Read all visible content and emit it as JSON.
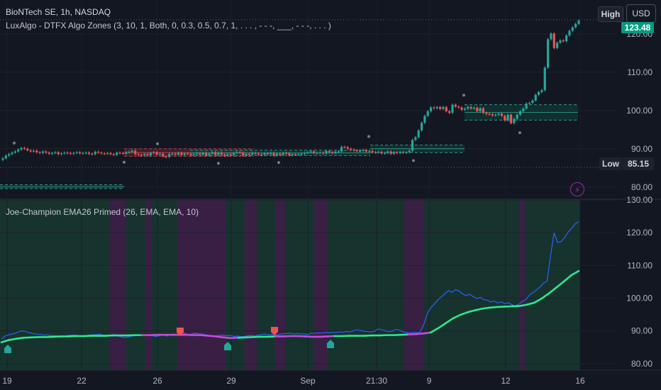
{
  "header": {
    "title": "BioNTech SE, 1h, NASDAQ",
    "indicator1": "LuxAlgo - DTFX Algo Zones (3, 10, 1, Both, 0, 0.3, 0.5, 0.7, 1, . . . , - - -, ___, - - -, . . . )",
    "indicator2": "Joe-Champion EMA26 Primed (26, EMA, EMA, 10)"
  },
  "controls": {
    "high_label": "High",
    "currency": "USD",
    "low_label": "Low",
    "low_value": "85.15",
    "last_price": "123.48",
    "alert_icon": "lightning-icon"
  },
  "colors": {
    "background": "#131722",
    "up": "#26a69a",
    "down": "#ef5350",
    "price_line": "#2962ff",
    "ema_bull": "#2ee88c",
    "ema_bear": "#c04dd6",
    "zone_bull": "#0f3b35",
    "zone_bear": "#5a1f2a",
    "bg_bull": "#17332e",
    "bg_bear": "#3a1f45"
  },
  "chart_data": [
    {
      "type": "candlestick",
      "title": "BioNTech SE, 1h, NASDAQ",
      "y_ticks": [
        80,
        90,
        100,
        110,
        120
      ],
      "ylim": [
        77,
        127
      ],
      "high": 123.48,
      "low": 85.15,
      "close": [
        87.5,
        88.2,
        88.6,
        89.0,
        89.3,
        89.8,
        90.2,
        90.0,
        89.6,
        89.3,
        89.5,
        89.1,
        88.9,
        89.3,
        89.0,
        88.7,
        88.9,
        89.1,
        88.6,
        88.8,
        89.0,
        88.9,
        88.7,
        88.9,
        89.1,
        88.8,
        88.9,
        89.0,
        88.7,
        88.6,
        89.2,
        89.0,
        88.8,
        88.7,
        88.9,
        88.6,
        88.4,
        89.0,
        88.9,
        88.7,
        89.1,
        89.2,
        89.5,
        88.6,
        88.4,
        88.3,
        88.6,
        88.3,
        88.9,
        89.1,
        88.5,
        88.7,
        88.0,
        87.9,
        88.6,
        88.7,
        88.5,
        88.9,
        88.4,
        88.8,
        88.7,
        88.4,
        88.6,
        88.8,
        88.5,
        88.9,
        88.3,
        88.7,
        89.1,
        88.4,
        89.0,
        88.5,
        88.2,
        88.6,
        88.4,
        88.9,
        89.1,
        89.0,
        88.3,
        88.6,
        88.5,
        88.9,
        88.7,
        88.5,
        88.4,
        88.8,
        88.6,
        88.9,
        88.2,
        88.7,
        88.4,
        88.9,
        88.8,
        88.3,
        88.6,
        88.5,
        88.6,
        88.7,
        88.9,
        89.1,
        89.3,
        88.9,
        89.0,
        89.0,
        88.8,
        89.4,
        89.1,
        88.9,
        89.2,
        89.3,
        90.5,
        90.4,
        90.0,
        89.8,
        89.6,
        89.4,
        89.5,
        89.7,
        89.3,
        89.4,
        89.1,
        89.0,
        89.2,
        88.8,
        88.9,
        89.3,
        88.7,
        89.1,
        88.9,
        89.2,
        89.0,
        89.1,
        89.5,
        92.3,
        93.0,
        94.8,
        96.8,
        98.6,
        99.8,
        100.8,
        100.6,
        100.9,
        100.4,
        100.9,
        99.8,
        99.4,
        101.5,
        101.0,
        100.8,
        100.2,
        100.5,
        100.9,
        100.5,
        100.7,
        99.8,
        100.6,
        99.4,
        99.1,
        99.0,
        98.7,
        98.9,
        99.2,
        98.6,
        97.4,
        98.9,
        96.7,
        97.8,
        98.9,
        99.8,
        100.5,
        101.8,
        102.0,
        102.6,
        104.1,
        104.8,
        105.3,
        111.2,
        118.6,
        120.1,
        116.3,
        117.7,
        118.3,
        118.1,
        119.6,
        120.8,
        121.7,
        122.6,
        123.48
      ]
    },
    {
      "type": "line",
      "title": "Joe-Champion EMA26 Primed (26, EMA, EMA, 10)",
      "y_ticks": [
        80,
        90,
        100,
        110,
        120,
        130
      ],
      "ylim": [
        78,
        130
      ],
      "series": [
        {
          "values": [
            87.5,
            88.4,
            88.8,
            89.0,
            89.3,
            89.8,
            90.0,
            89.8,
            89.4,
            89.2,
            89.0,
            88.9,
            88.7,
            88.8,
            88.6,
            88.5,
            88.4,
            88.3,
            88.4,
            88.6,
            88.7,
            88.7,
            88.5,
            88.3,
            88.4,
            88.7,
            88.8,
            88.9,
            89.0,
            88.6,
            88.4,
            88.6,
            88.9,
            88.5,
            88.2,
            87.9,
            88.1,
            88.4,
            88.5,
            88.8,
            88.7,
            88.6,
            88.9,
            88.5,
            88.3,
            88.6,
            88.8,
            88.4,
            88.9,
            89.0,
            88.9,
            88.7,
            89.2,
            88.9,
            89.0,
            89.3,
            89.1,
            89.0,
            88.8,
            88.6,
            88.5,
            88.4,
            88.6,
            88.7,
            88.5,
            88.6,
            88.3,
            88.4,
            88.2,
            88.3,
            88.5,
            88.6,
            88.4,
            88.7,
            88.9,
            89.0,
            88.8,
            88.9,
            88.7,
            88.9,
            89.1,
            89.2,
            89.3,
            89.0,
            89.2,
            89.0,
            89.1,
            88.9,
            89.3,
            89.2,
            89.4,
            89.3,
            89.5,
            89.4,
            89.6,
            89.5,
            89.7,
            89.6,
            89.8,
            89.7,
            90.0,
            90.3,
            90.1,
            89.9,
            89.8,
            89.7,
            89.9,
            90.6,
            90.3,
            90.0,
            89.8,
            89.9,
            90.4,
            90.2,
            89.8,
            89.5,
            89.3,
            89.6,
            89.4,
            89.7,
            92.0,
            95.3,
            97.1,
            98.2,
            99.5,
            100.4,
            101.4,
            102.3,
            101.8,
            102.6,
            102.2,
            101.3,
            100.8,
            101.2,
            100.5,
            99.9,
            100.2,
            99.6,
            99.4,
            98.8,
            99.1,
            98.5,
            98.9,
            98.3,
            98.6,
            98.0,
            97.6,
            98.2,
            99.0,
            99.6,
            100.9,
            101.7,
            102.5,
            103.4,
            104.6,
            105.2,
            113.0,
            120.0,
            117.0,
            117.3,
            118.5,
            120.2,
            121.4,
            122.7,
            123.4
          ]
        },
        {
          "values": [
            86.5,
            87.2,
            87.6,
            87.9,
            88.0,
            88.1,
            88.1,
            88.2,
            88.3,
            88.3,
            88.4,
            88.4,
            88.5,
            88.5,
            88.5,
            88.6,
            88.6,
            88.6,
            88.7,
            88.7,
            88.7,
            88.8,
            88.8,
            88.8,
            88.8,
            88.8,
            88.7,
            88.7,
            88.5,
            88.3,
            88.0,
            87.8,
            87.9,
            88.0,
            88.1,
            88.2,
            88.2,
            88.3,
            88.3,
            88.4,
            88.4,
            88.3,
            88.2,
            88.2,
            88.3,
            88.4,
            88.4,
            88.5,
            88.5,
            88.5,
            88.6,
            88.6,
            88.7,
            88.7,
            88.8,
            88.9,
            89.0,
            89.2,
            89.5,
            90.8,
            92.3,
            93.8,
            94.9,
            95.7,
            96.3,
            96.8,
            97.1,
            97.3,
            97.4,
            97.5,
            97.6,
            98.0,
            98.6,
            99.9,
            101.5,
            103.3,
            105.1,
            107.0,
            108.3
          ]
        }
      ]
    }
  ],
  "axis": {
    "price_ticks": [
      "120.00",
      "110.00",
      "100.00",
      "90.00",
      "80.00"
    ],
    "osc_ticks": [
      "130.00",
      "120.00",
      "110.00",
      "100.00",
      "90.00",
      "80.00"
    ],
    "time_ticks": [
      "19",
      "22",
      "26",
      "29",
      "Sep",
      "21:30",
      "9",
      "12",
      "16"
    ]
  }
}
